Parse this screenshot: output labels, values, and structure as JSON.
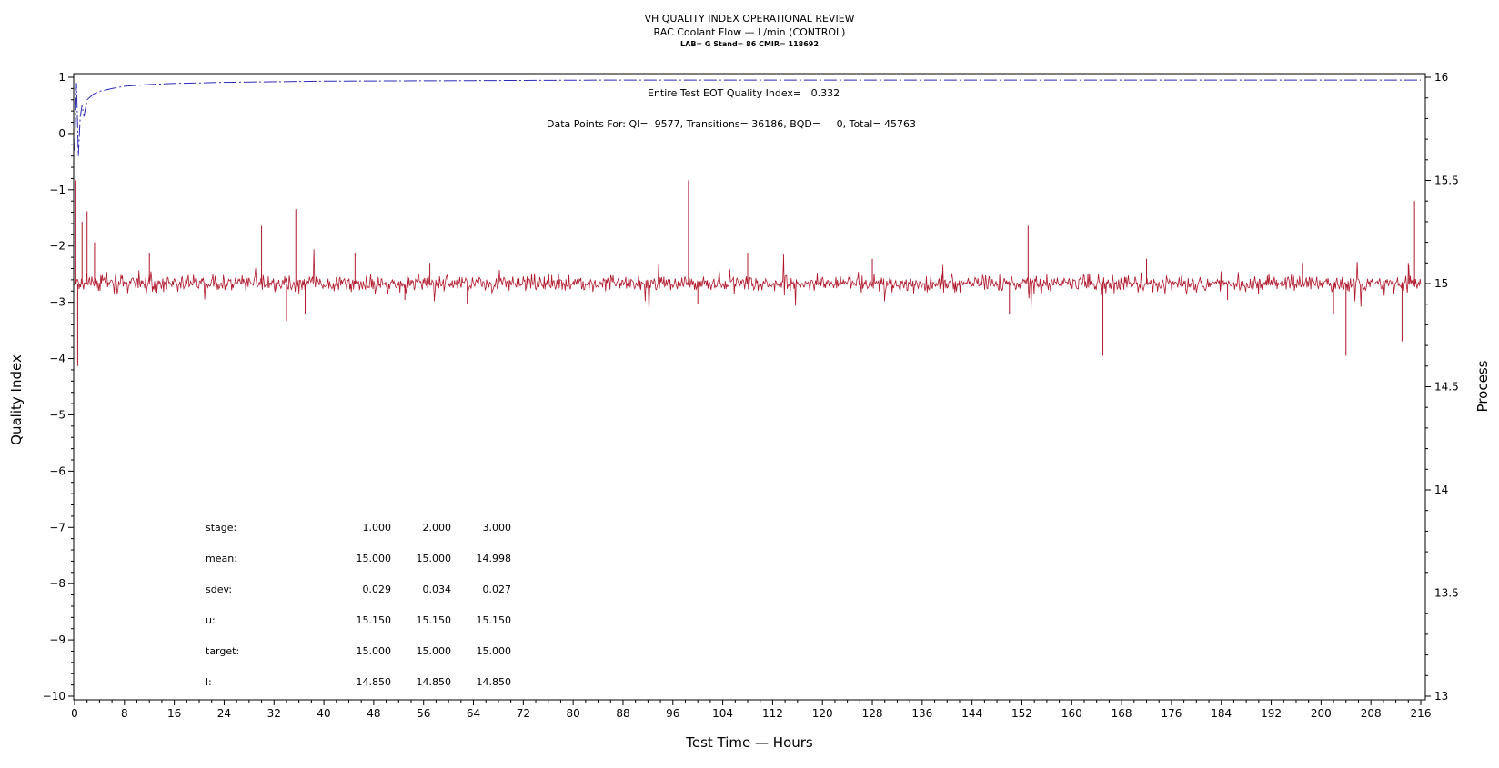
{
  "header": {
    "title": "VH QUALITY INDEX OPERATIONAL REVIEW",
    "subtitle": "RAC Coolant Flow — L/min (CONTROL)",
    "info": "LAB= G Stand= 86 CMIR= 118692"
  },
  "annotations": {
    "eot": "Entire Test EOT Quality Index=   0.332",
    "datapoints": "Data Points For: QI=  9577, Transitions= 36186, BQD=     0, Total= 45763"
  },
  "stats": {
    "labels": [
      "stage:",
      "mean:",
      "sdev:",
      "u:",
      "target:",
      "l:"
    ],
    "rows": [
      [
        "1.000",
        "2.000",
        "3.000"
      ],
      [
        "15.000",
        "15.000",
        "14.998"
      ],
      [
        "0.029",
        "0.034",
        "0.027"
      ],
      [
        "15.150",
        "15.150",
        "15.150"
      ],
      [
        "15.000",
        "15.000",
        "15.000"
      ],
      [
        "14.850",
        "14.850",
        "14.850"
      ]
    ]
  },
  "chart_data": {
    "type": "line",
    "title": "VH QUALITY INDEX OPERATIONAL REVIEW",
    "xlabel": "Test Time — Hours",
    "ylabel_left": "Quality Index",
    "ylabel_right": "Process",
    "xlim": [
      0,
      216
    ],
    "ylim_left": [
      -10,
      1
    ],
    "ylim_right": [
      13,
      16
    ],
    "x_ticks": [
      0,
      8,
      16,
      24,
      32,
      40,
      48,
      56,
      64,
      72,
      80,
      88,
      96,
      104,
      112,
      120,
      128,
      136,
      144,
      152,
      160,
      168,
      176,
      184,
      192,
      200,
      208,
      216
    ],
    "y_left_ticks": [
      1,
      0,
      -1,
      -2,
      -3,
      -4,
      -5,
      -6,
      -7,
      -8,
      -9,
      -10
    ],
    "y_right_ticks": [
      16,
      15.5,
      15,
      14.5,
      14,
      13.5,
      13
    ],
    "y_left_tick_labels": [
      "1",
      "0",
      "−1",
      "−2",
      "−3",
      "−4",
      "−5",
      "−6",
      "−7",
      "−8",
      "−9",
      "−10"
    ],
    "y_right_tick_labels": [
      "16",
      "15.5",
      "15",
      "14.5",
      "14",
      "13.5",
      "13"
    ],
    "series": [
      {
        "color": "#2b2bb8",
        "axis": "left",
        "style": "dash-dot",
        "points": [
          [
            0.0,
            -0.3
          ],
          [
            0.3,
            0.9
          ],
          [
            0.6,
            -0.4
          ],
          [
            0.9,
            0.3
          ],
          [
            1.2,
            0.5
          ],
          [
            1.5,
            0.3
          ],
          [
            2,
            0.6
          ],
          [
            3,
            0.7
          ],
          [
            4,
            0.75
          ],
          [
            6,
            0.8
          ],
          [
            8,
            0.84
          ],
          [
            12,
            0.87
          ],
          [
            16,
            0.89
          ],
          [
            24,
            0.91
          ],
          [
            40,
            0.93
          ],
          [
            64,
            0.94
          ],
          [
            85,
            0.95
          ],
          [
            120,
            0.95
          ],
          [
            160,
            0.95
          ],
          [
            216,
            0.95
          ]
        ]
      },
      {
        "color": "#b0182c",
        "axis": "right",
        "style": "noisy",
        "mean": 15.0,
        "sdev": 0.03,
        "spikes": [
          [
            0.2,
            15.5
          ],
          [
            0.5,
            14.6
          ],
          [
            1.2,
            15.3
          ],
          [
            2.0,
            15.35
          ],
          [
            3.2,
            15.2
          ],
          [
            12,
            15.15
          ],
          [
            30,
            15.28
          ],
          [
            34,
            14.82
          ],
          [
            35.5,
            15.36
          ],
          [
            37,
            14.85
          ],
          [
            45,
            15.15
          ],
          [
            53,
            14.92
          ],
          [
            57,
            15.1
          ],
          [
            63,
            14.9
          ],
          [
            98.5,
            15.5
          ],
          [
            100,
            14.9
          ],
          [
            108,
            15.15
          ],
          [
            128,
            15.12
          ],
          [
            150,
            14.85
          ],
          [
            153,
            15.28
          ],
          [
            165,
            14.65
          ],
          [
            172,
            15.12
          ],
          [
            185,
            14.92
          ],
          [
            197,
            15.1
          ],
          [
            202,
            14.85
          ],
          [
            204,
            14.65
          ],
          [
            213,
            14.72
          ],
          [
            214,
            15.1
          ],
          [
            215,
            15.4
          ]
        ]
      }
    ]
  }
}
